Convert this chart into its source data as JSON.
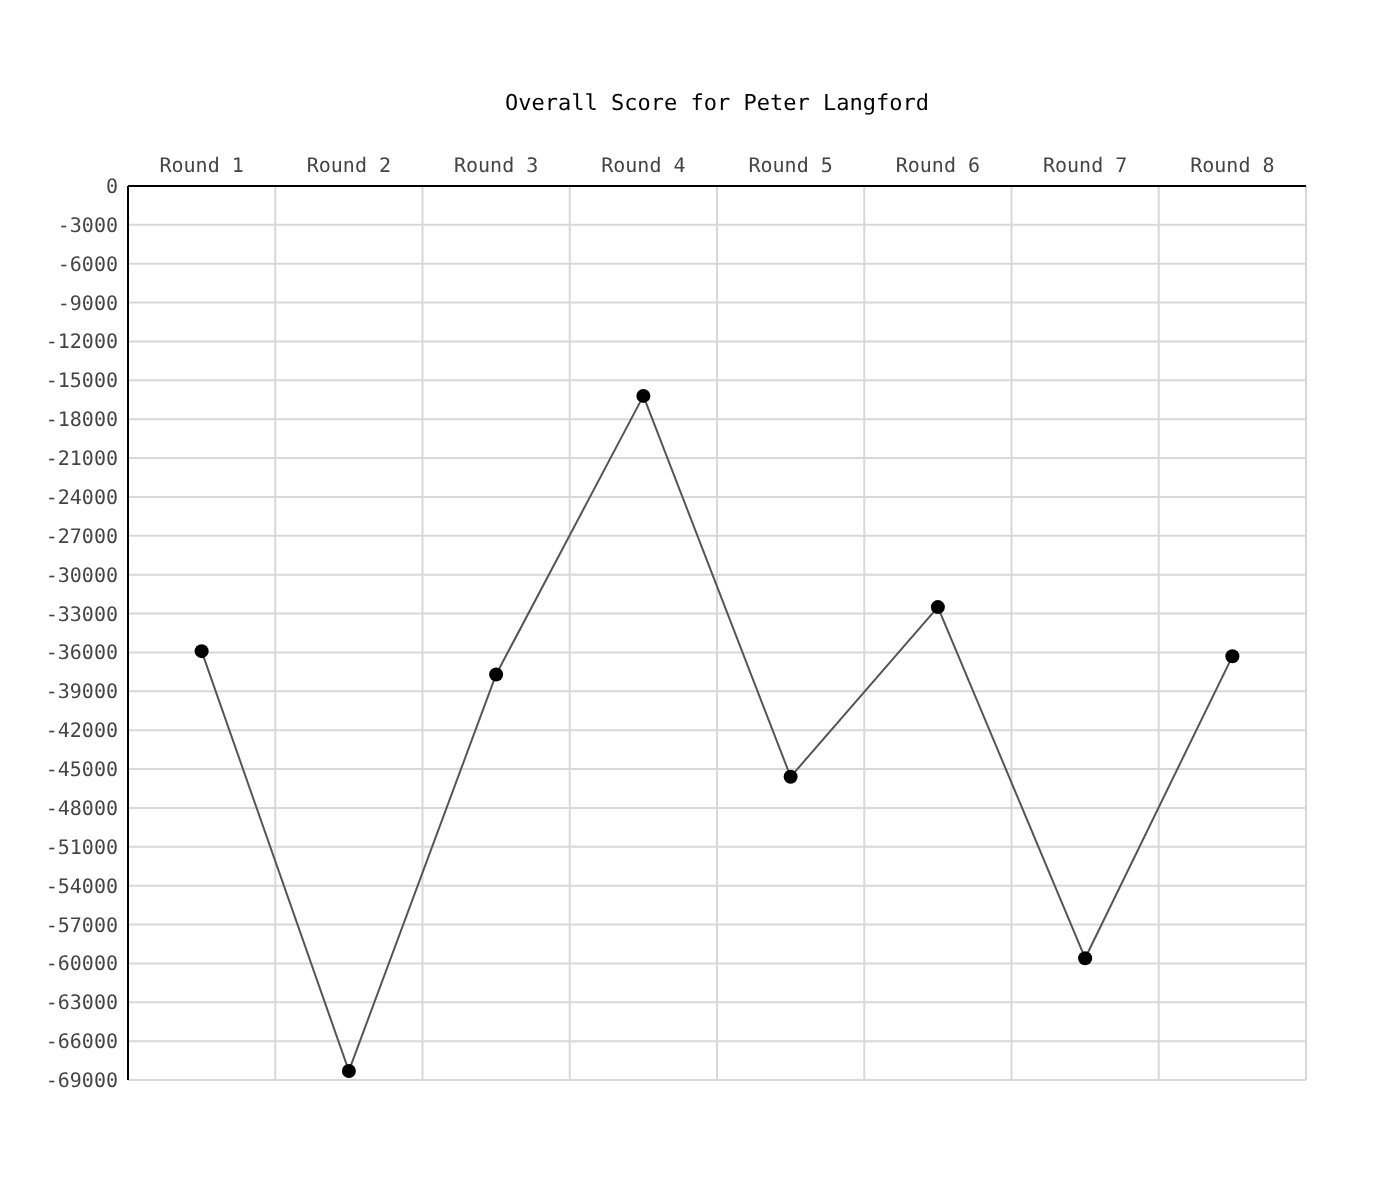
{
  "chart_data": {
    "type": "line",
    "title": "Overall Score for Peter Langford",
    "categories": [
      "Round 1",
      "Round 2",
      "Round 3",
      "Round 4",
      "Round 5",
      "Round 6",
      "Round 7",
      "Round 8"
    ],
    "series": [
      {
        "color": "#555555",
        "values": [
          -35900,
          -68300,
          -37700,
          -16200,
          -45600,
          -32500,
          -59600,
          -36300
        ]
      }
    ],
    "ylim": [
      -69000,
      0
    ],
    "yticks": [
      0,
      -3000,
      -6000,
      -9000,
      -12000,
      -15000,
      -18000,
      -21000,
      -24000,
      -27000,
      -30000,
      -33000,
      -36000,
      -39000,
      -42000,
      -45000,
      -48000,
      -51000,
      -54000,
      -57000,
      -60000,
      -63000,
      -66000,
      -69000
    ],
    "grid": true,
    "marker": "circle",
    "line_style": "solid"
  }
}
